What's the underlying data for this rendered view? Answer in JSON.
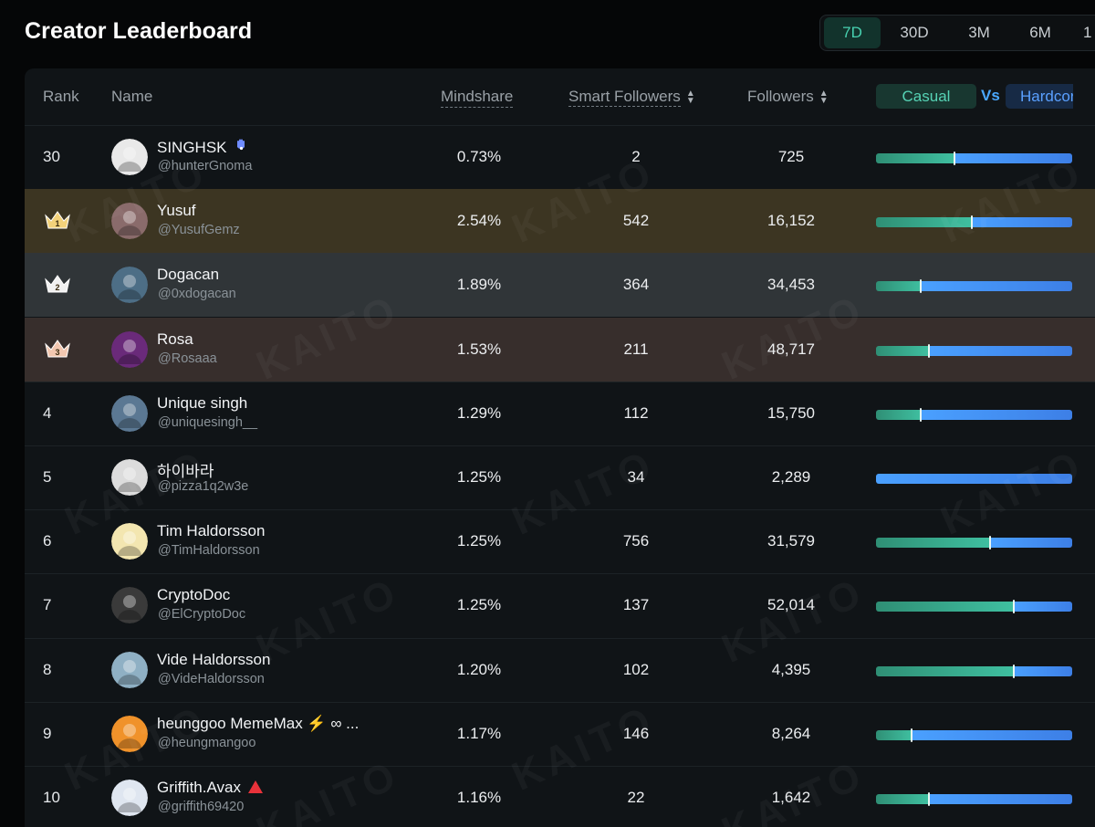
{
  "page": {
    "title": "Creator Leaderboard"
  },
  "ranges": [
    {
      "label": "7D",
      "active": true
    },
    {
      "label": "30D",
      "active": false
    },
    {
      "label": "3M",
      "active": false
    },
    {
      "label": "6M",
      "active": false
    },
    {
      "label": "1",
      "active": false
    }
  ],
  "columns": {
    "rank": "Rank",
    "name": "Name",
    "mindshare": "Mindshare",
    "smart_followers": "Smart Followers",
    "followers": "Followers",
    "casual": "Casual",
    "vs": "Vs",
    "hardcore": "Hardcore"
  },
  "watermark": "KAITO",
  "colors": {
    "accent": "#48d2b1",
    "blue": "#4aa0ff",
    "gold_row": "#3c3522",
    "silver_row": "#303538",
    "bronze_row": "#372e2c"
  },
  "rows": [
    {
      "rank": "30",
      "crown": "",
      "name": "SINGHSK",
      "badge": "hamsa",
      "handle": "@hunterGnoma",
      "mindshare": "0.73%",
      "smart_followers": "2",
      "followers": "725",
      "casual_share": 0.4,
      "avatar": "#e9e9e9"
    },
    {
      "rank": "1",
      "crown": "gold",
      "name": "Yusuf",
      "badge": "",
      "handle": "@YusufGemz",
      "mindshare": "2.54%",
      "smart_followers": "542",
      "followers": "16,152",
      "casual_share": 0.49,
      "avatar": "#8a6b6b"
    },
    {
      "rank": "2",
      "crown": "silver",
      "name": "Dogacan",
      "badge": "",
      "handle": "@0xdogacan",
      "mindshare": "1.89%",
      "smart_followers": "364",
      "followers": "34,453",
      "casual_share": 0.23,
      "avatar": "#4d6e86"
    },
    {
      "rank": "3",
      "crown": "bronze",
      "name": "Rosa",
      "badge": "",
      "handle": "@Rosaaa",
      "mindshare": "1.53%",
      "smart_followers": "211",
      "followers": "48,717",
      "casual_share": 0.27,
      "avatar": "#6a2a7a"
    },
    {
      "rank": "4",
      "crown": "",
      "name": "Unique singh",
      "badge": "",
      "handle": "@uniquesingh__",
      "mindshare": "1.29%",
      "smart_followers": "112",
      "followers": "15,750",
      "casual_share": 0.23,
      "avatar": "#5b7893"
    },
    {
      "rank": "5",
      "crown": "",
      "name": "하이바라",
      "badge": "",
      "handle": "@pizza1q2w3e",
      "mindshare": "1.25%",
      "smart_followers": "34",
      "followers": "2,289",
      "casual_share": 0.0,
      "avatar": "#dcdcdc"
    },
    {
      "rank": "6",
      "crown": "",
      "name": "Tim Haldorsson",
      "badge": "",
      "handle": "@TimHaldorsson",
      "mindshare": "1.25%",
      "smart_followers": "756",
      "followers": "31,579",
      "casual_share": 0.58,
      "avatar": "#f3e6b0"
    },
    {
      "rank": "7",
      "crown": "",
      "name": "CryptoDoc",
      "badge": "",
      "handle": "@ElCryptoDoc",
      "mindshare": "1.25%",
      "smart_followers": "137",
      "followers": "52,014",
      "casual_share": 0.7,
      "avatar": "#3a3a3a"
    },
    {
      "rank": "8",
      "crown": "",
      "name": "Vide Haldorsson",
      "badge": "",
      "handle": "@VideHaldorsson",
      "mindshare": "1.20%",
      "smart_followers": "102",
      "followers": "4,395",
      "casual_share": 0.7,
      "avatar": "#8fb0c4"
    },
    {
      "rank": "9",
      "crown": "",
      "name": "heunggoo MemeMax ⚡️ ∞ ...",
      "badge": "",
      "handle": "@heungmangoo",
      "mindshare": "1.17%",
      "smart_followers": "146",
      "followers": "8,264",
      "casual_share": 0.18,
      "avatar": "#f0922a"
    },
    {
      "rank": "10",
      "crown": "",
      "name": "Griffith.Avax",
      "badge": "triangle",
      "handle": "@griffith69420",
      "mindshare": "1.16%",
      "smart_followers": "22",
      "followers": "1,642",
      "casual_share": 0.27,
      "avatar": "#dfe6f0"
    }
  ]
}
